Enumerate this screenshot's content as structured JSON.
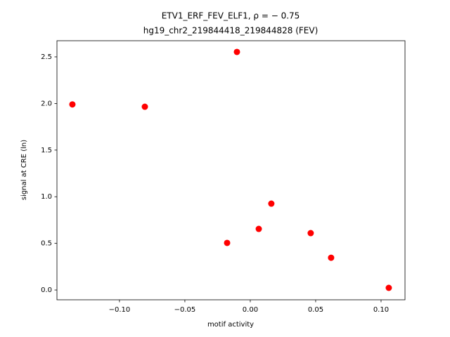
{
  "chart_data": {
    "type": "scatter",
    "title": "ETV1_ERF_FEV_ELF1, ρ = − 0.75",
    "subtitle": "hg19_chr2_219844418_219844828 (FEV)",
    "x_label": "motif activity",
    "y_label": "signal at CRE (ln)",
    "color": "#ff0000",
    "x": [
      -0.136,
      -0.0806,
      -0.0102,
      0.0161,
      0.0065,
      -0.0177,
      0.0462,
      0.0618,
      0.1059
    ],
    "values": [
      1.99,
      1.965,
      2.553,
      0.926,
      0.655,
      0.505,
      0.61,
      0.346,
      0.023
    ],
    "xlim": [
      -0.1478,
      0.1183
    ],
    "ylim": [
      -0.105,
      2.673
    ],
    "xticks": [
      {
        "value": -0.1,
        "label": "−0.10"
      },
      {
        "value": -0.05,
        "label": "−0.05"
      },
      {
        "value": 0,
        "label": "0.00"
      },
      0.05,
      {
        "value": 0.1,
        "label": "0.10"
      }
    ],
    "yticks": [
      {
        "value": 0,
        "label": "0.0"
      },
      0.5,
      {
        "value": 1,
        "label": "1.0"
      },
      1.5,
      {
        "value": 2,
        "label": "2.0"
      },
      2.5
    ]
  }
}
